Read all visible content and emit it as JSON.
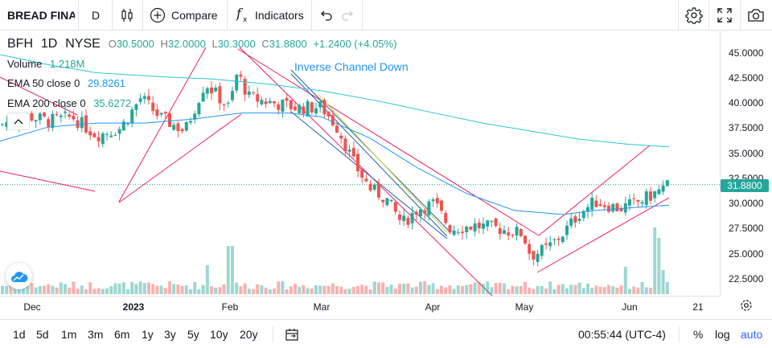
{
  "toolbar": {
    "symbol": "BREAD FINA",
    "interval": "D",
    "compare_label": "Compare",
    "indicators_label": "Indicators"
  },
  "legend": {
    "ticker": "BFH",
    "interval": "1D",
    "exchange": "NYSE",
    "o_key": "O",
    "o": "30.5000",
    "h_key": "H",
    "h": "32.0000",
    "l_key": "L",
    "l": "30.3000",
    "c_key": "C",
    "c": "31.8800",
    "change": "+1.2400 (+4.05%)"
  },
  "studies": {
    "volume_label": "Volume",
    "volume_value": "1.218M",
    "ema50_label": "EMA 50 close 0",
    "ema50_value": "29.8261",
    "ema200_label": "EMA 200 close 0",
    "ema200_value": "35.6272"
  },
  "annotation": "Inverse Channel Down",
  "price_axis": [
    "45.0000",
    "42.5000",
    "40.0000",
    "37.5000",
    "35.0000",
    "32.5000",
    "30.0000",
    "27.5000",
    "25.0000",
    "22.5000"
  ],
  "last_price": "31.8800",
  "time_axis": [
    "Dec",
    "2023",
    "Feb",
    "Mar",
    "Apr",
    "May",
    "Jun",
    "21"
  ],
  "ranges": [
    "1d",
    "5d",
    "1m",
    "3m",
    "6m",
    "1y",
    "3y",
    "5y",
    "10y",
    "20y"
  ],
  "clock": "00:55:44 (UTC-4)",
  "scale_modes": {
    "percent": "%",
    "log": "log",
    "auto": "auto"
  },
  "colors": {
    "up": "#26a69a",
    "down": "#ef5350",
    "ema50": "#2196f3",
    "ema200": "#26c6da",
    "channel": "#e91e63"
  },
  "chart_data": {
    "type": "candlestick",
    "series": [
      {
        "name": "BFH"
      }
    ],
    "ylim": [
      21.5,
      46
    ],
    "last": 31.88
  }
}
